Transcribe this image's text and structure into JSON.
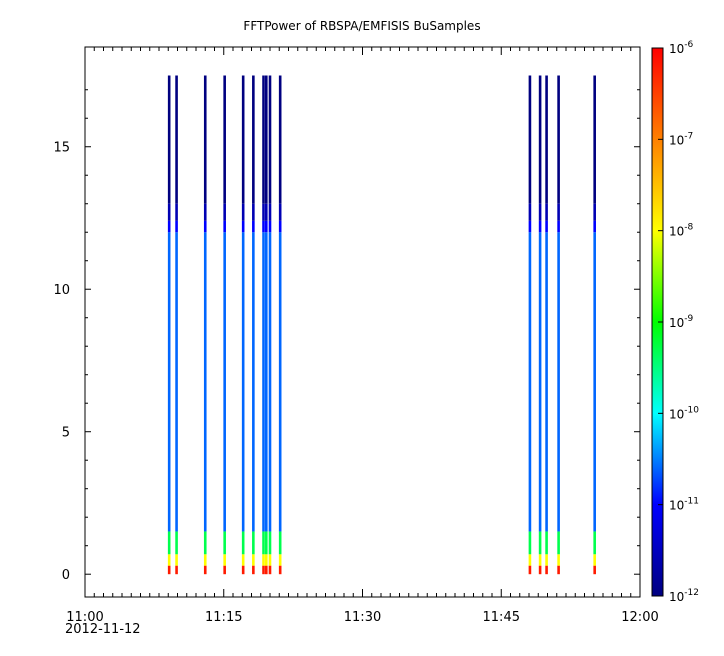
{
  "chart_data": {
    "type": "heatmap",
    "title": "FFTPower of RBSPA/EMFISIS  BuSamples",
    "xlabel": "",
    "ylabel": "",
    "x_axis": {
      "type": "time",
      "range": [
        "11:00",
        "12:00"
      ],
      "tick_labels": [
        "11:00",
        "11:15",
        "11:30",
        "11:45",
        "12:00"
      ],
      "date_label": "2012-11-12"
    },
    "y_axis": {
      "range": [
        -0.8,
        18.5
      ],
      "ticks": [
        0,
        5,
        10,
        15
      ],
      "tick_labels": [
        "0",
        "5",
        "10",
        "15"
      ]
    },
    "colorbar": {
      "scale": "log",
      "range": [
        1e-12,
        1e-06
      ],
      "tick_labels": [
        {
          "base": "10",
          "exp": "-12"
        },
        {
          "base": "10",
          "exp": "-11"
        },
        {
          "base": "10",
          "exp": "-10"
        },
        {
          "base": "10",
          "exp": "-9"
        },
        {
          "base": "10",
          "exp": "-8"
        },
        {
          "base": "10",
          "exp": "-7"
        },
        {
          "base": "10",
          "exp": "-6"
        }
      ],
      "colormap": [
        "#000080",
        "#0000ff",
        "#00ffff",
        "#00ff00",
        "#ffff00",
        "#ff8000",
        "#ff0000"
      ]
    },
    "y_max": 17.5,
    "band_profile": [
      {
        "y_min": 0.0,
        "y_max": 0.3,
        "log_power": -6.2
      },
      {
        "y_min": 0.3,
        "y_max": 0.7,
        "log_power": -8.0
      },
      {
        "y_min": 0.7,
        "y_max": 1.5,
        "log_power": -9.3
      },
      {
        "y_min": 1.5,
        "y_max": 12.0,
        "log_power": -10.6
      },
      {
        "y_min": 12.0,
        "y_max": 12.4,
        "log_power": -11.0
      },
      {
        "y_min": 12.4,
        "y_max": 13.0,
        "log_power": -11.6
      },
      {
        "y_min": 13.0,
        "y_max": 17.5,
        "log_power": -12.0
      }
    ],
    "samples_minutes": [
      9.1,
      9.9,
      13.0,
      15.1,
      17.1,
      18.2,
      19.3,
      19.6,
      20.0,
      21.1,
      48.1,
      49.2,
      49.9,
      51.2,
      55.1
    ]
  }
}
